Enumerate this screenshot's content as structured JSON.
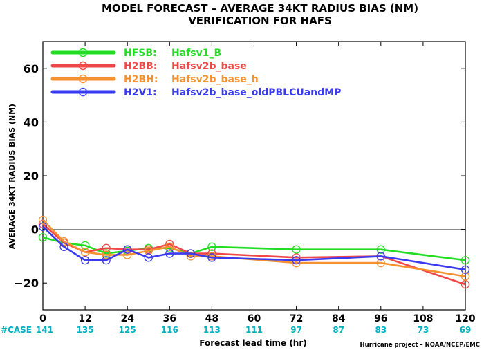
{
  "chart_data": {
    "type": "line",
    "title": "MODEL FORECAST – AVERAGE 34KT RADIUS BIAS (NM)",
    "subtitle": "VERIFICATION FOR HAFS",
    "xlabel": "Forecast lead time (hr)",
    "ylabel": "AVERAGE 34KT RADIUS BIAS (NM)",
    "xlim": [
      0,
      120
    ],
    "ylim": [
      -30,
      70
    ],
    "x_ticks": [
      0,
      12,
      24,
      36,
      48,
      60,
      72,
      84,
      96,
      108,
      120
    ],
    "y_ticks": [
      -20,
      0,
      20,
      40,
      60
    ],
    "y_tick_labels": [
      "−20",
      "0",
      "20",
      "40",
      "60"
    ],
    "legend_position": "top-left",
    "grid": false,
    "reference_line": 0,
    "case_label": "#CASE",
    "case_counts": [
      141,
      135,
      125,
      116,
      113,
      111,
      97,
      87,
      83,
      73,
      69
    ],
    "footer": "Hurricane project – NOAA/NCEP/EMC",
    "case_color": "#00b0c0",
    "series": [
      {
        "code": "HFSB:",
        "name": "Hafsv1_B",
        "color": "#22dd22",
        "x": [
          0,
          6,
          12,
          18,
          24,
          30,
          36,
          42,
          48,
          72,
          96,
          120
        ],
        "y": [
          -3,
          -5,
          -6,
          -9,
          -8,
          -7,
          -7,
          -9,
          -6.5,
          -7.5,
          -7.5,
          -11.5
        ]
      },
      {
        "code": "H2BB:",
        "name": "Hafsv2b_base",
        "color": "#f04848",
        "x": [
          0,
          6,
          12,
          18,
          24,
          30,
          36,
          42,
          48,
          72,
          96,
          120
        ],
        "y": [
          2,
          -5,
          -8.5,
          -7,
          -7.5,
          -7.5,
          -5.5,
          -9,
          -9,
          -10.5,
          -10,
          -20.5
        ]
      },
      {
        "code": "H2BH:",
        "name": "Hafsv2b_base_h",
        "color": "#f59230",
        "x": [
          0,
          6,
          12,
          18,
          24,
          30,
          36,
          42,
          48,
          72,
          96,
          120
        ],
        "y": [
          3.5,
          -4.5,
          -8.5,
          -9.5,
          -9.5,
          -8,
          -6.5,
          -10,
          -10,
          -12.5,
          -12.5,
          -17.5
        ]
      },
      {
        "code": "H2V1:",
        "name": "Hafsv2b_base_oldPBLCUandMP",
        "color": "#3a3af0",
        "x": [
          0,
          6,
          12,
          18,
          24,
          30,
          36,
          42,
          48,
          72,
          96,
          120
        ],
        "y": [
          1,
          -6.5,
          -11.5,
          -11.5,
          -7.5,
          -10.5,
          -9,
          -9,
          -10.5,
          -11.5,
          -10,
          -15
        ]
      }
    ]
  }
}
